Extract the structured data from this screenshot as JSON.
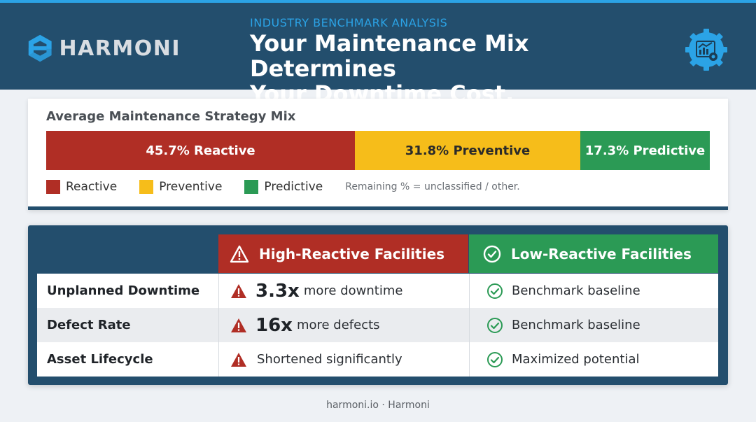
{
  "brand": {
    "name": "HARMONI"
  },
  "header": {
    "eyebrow": "INDUSTRY BENCHMARK ANALYSIS",
    "title_line1": "Your Maintenance Mix Determines",
    "title_line2": "Your Downtime Cost."
  },
  "mix": {
    "title": "Average Maintenance Strategy Mix",
    "segments": [
      {
        "label": "45.7% Reactive",
        "value": 45.7,
        "color": "#b02e25"
      },
      {
        "label": "31.8% Preventive",
        "value": 31.8,
        "color": "#f6bd1a"
      },
      {
        "label": "17.3% Predictive",
        "value": 17.3,
        "color": "#2b9a55"
      }
    ],
    "legend": [
      "Reactive",
      "Preventive",
      "Predictive"
    ],
    "note": "Remaining % = unclassified / other."
  },
  "comparison": {
    "col_high": "High-Reactive Facilities",
    "col_low": "Low-Reactive Facilities",
    "rows": [
      {
        "metric": "Unplanned Downtime",
        "high_big": "3.3x",
        "high_text": "more downtime",
        "low": "Benchmark baseline"
      },
      {
        "metric": "Defect Rate",
        "high_big": "16x",
        "high_text": "more defects",
        "low": "Benchmark baseline"
      },
      {
        "metric": "Asset Lifecycle",
        "high_big": "",
        "high_text": "Shortened significantly",
        "low": "Maximized potential"
      }
    ]
  },
  "icons": {
    "logo": "harmoni-logo-icon",
    "badge": "analytics-gear-icon",
    "warning": "warning-triangle-icon",
    "check": "check-circle-icon"
  },
  "footer": {
    "text": "harmoni.io · Harmoni"
  }
}
